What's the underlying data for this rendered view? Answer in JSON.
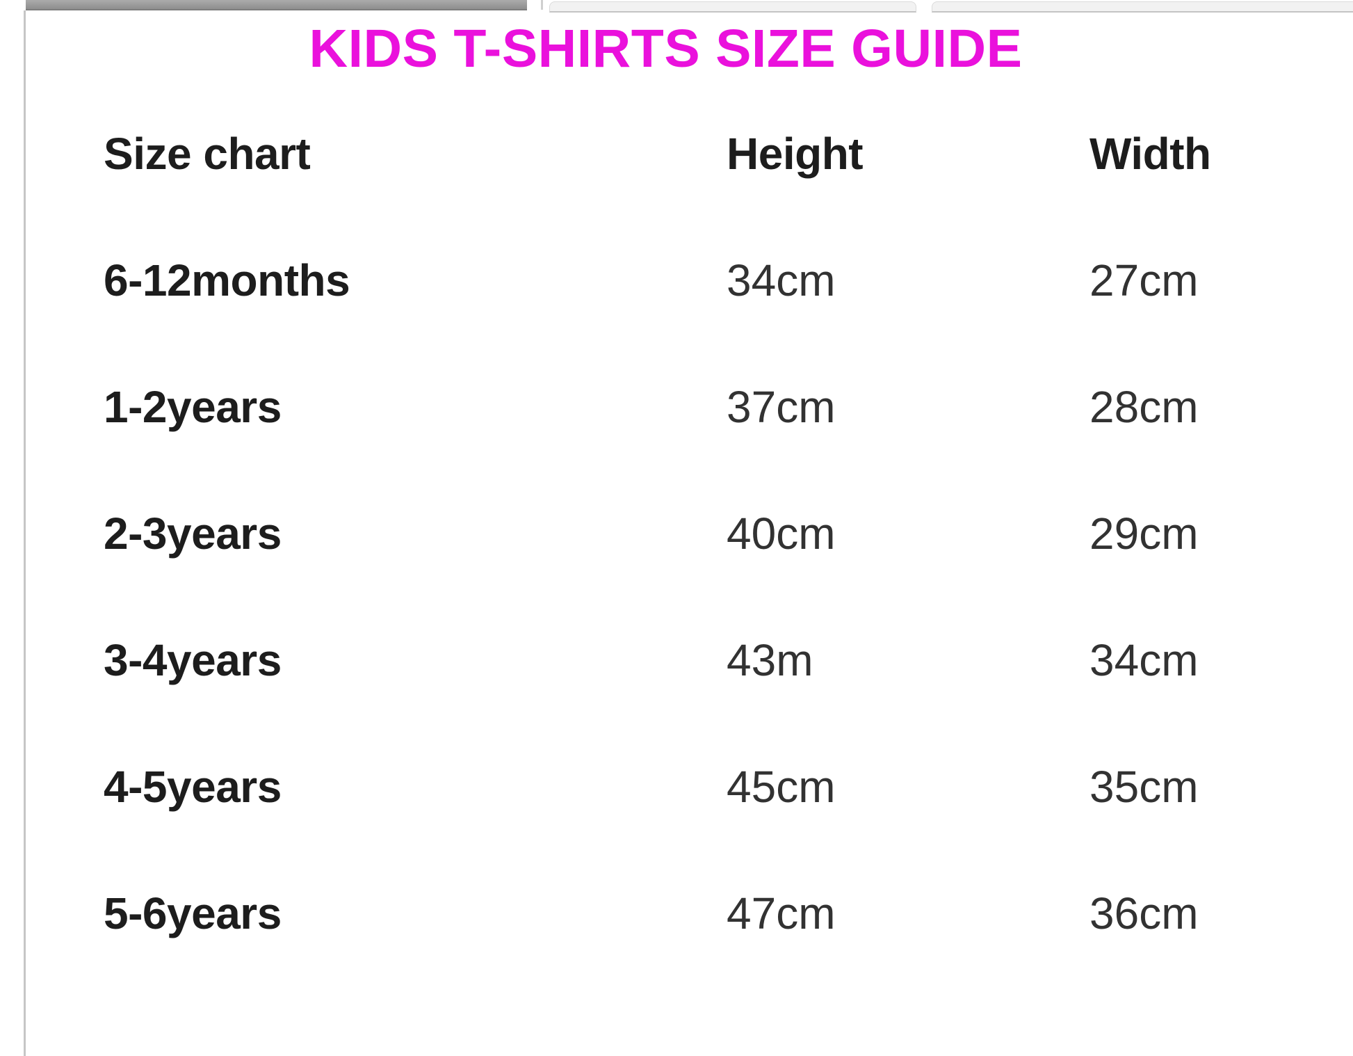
{
  "page": {
    "title": "KIDS T-SHIRTS SIZE GUIDE"
  },
  "colors": {
    "title": "#ea11dc",
    "heading_text": "#1d1d1d",
    "value_text": "#323232",
    "scrollbar_thumb": "#9c9c9c",
    "tab_background": "#f2f2f2",
    "tab_border": "#c4c4c4",
    "left_border": "#c6c6c6"
  },
  "size_table": {
    "columns": [
      "Size chart",
      "Height",
      "Width"
    ],
    "rows": [
      {
        "label": "6-12months",
        "height": "34cm",
        "width": "27cm"
      },
      {
        "label": "1-2years",
        "height": "37cm",
        "width": "28cm"
      },
      {
        "label": "2-3years",
        "height": "40cm",
        "width": "29cm"
      },
      {
        "label": "3-4years",
        "height": "43m",
        "width": "34cm"
      },
      {
        "label": "4-5years",
        "height": "45cm",
        "width": "35cm"
      },
      {
        "label": "5-6years",
        "height": "47cm",
        "width": "36cm"
      }
    ]
  }
}
